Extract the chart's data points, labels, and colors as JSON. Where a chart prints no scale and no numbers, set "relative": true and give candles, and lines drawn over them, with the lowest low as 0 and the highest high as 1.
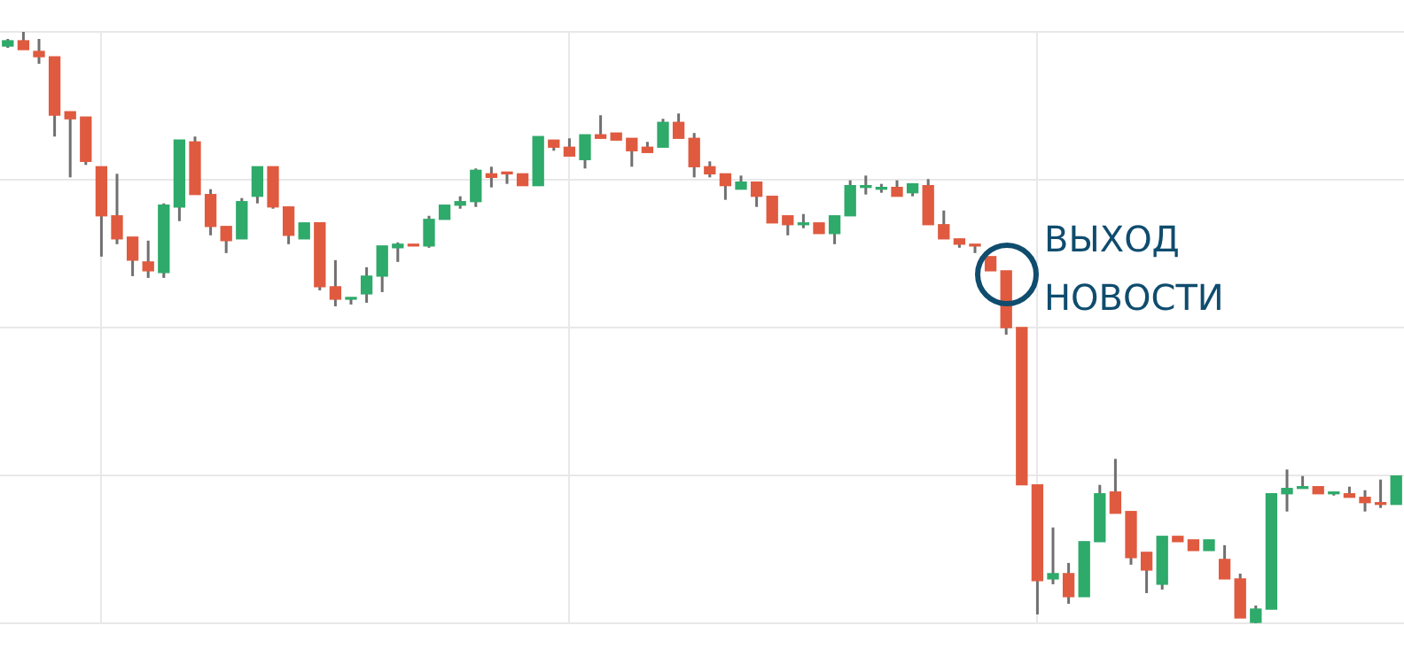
{
  "chart_data": {
    "type": "candlestick",
    "relative": true,
    "grid": true,
    "categories": [
      null,
      null,
      null,
      null,
      null,
      null,
      null,
      null,
      null,
      null,
      null,
      null,
      null,
      null,
      null,
      null,
      null,
      null,
      null,
      null,
      null,
      null,
      null,
      null,
      null,
      null,
      null,
      null,
      null,
      null,
      null,
      null,
      null,
      null,
      null,
      null,
      null,
      null,
      null,
      null,
      null,
      null,
      null,
      null,
      null,
      null,
      null,
      null,
      null,
      null,
      null,
      null,
      null,
      null,
      null,
      null,
      null,
      null,
      null,
      null,
      null,
      null,
      null,
      null,
      null,
      null,
      null,
      null,
      null,
      null,
      null,
      null,
      null,
      null,
      null,
      null,
      null,
      null,
      null,
      null,
      null,
      null,
      null,
      null,
      null,
      null,
      null,
      null,
      null,
      null
    ],
    "series": [
      {
        "colors": [
          "#2eaa6a",
          "#e05a3f",
          "#e05a3f",
          "#e05a3f",
          "#e05a3f",
          "#e05a3f",
          "#e05a3f",
          "#e05a3f",
          "#e05a3f",
          "#e05a3f",
          "#2eaa6a",
          "#2eaa6a",
          "#e05a3f",
          "#e05a3f",
          "#e05a3f",
          "#2eaa6a",
          "#2eaa6a",
          "#e05a3f",
          "#e05a3f",
          "#2eaa6a",
          "#e05a3f",
          "#e05a3f",
          "#2eaa6a",
          "#2eaa6a",
          "#2eaa6a",
          "#2eaa6a",
          "#e05a3f",
          "#2eaa6a",
          "#2eaa6a",
          "#2eaa6a",
          "#2eaa6a",
          "#e05a3f",
          "#e05a3f",
          "#e05a3f",
          "#2eaa6a",
          "#e05a3f",
          "#e05a3f",
          "#2eaa6a",
          "#e05a3f",
          "#e05a3f",
          "#e05a3f",
          "#e05a3f",
          "#2eaa6a",
          "#e05a3f",
          "#e05a3f",
          "#e05a3f",
          "#e05a3f",
          "#2eaa6a",
          "#e05a3f",
          "#e05a3f",
          "#e05a3f",
          "#2eaa6a",
          "#e05a3f",
          "#2eaa6a",
          "#2eaa6a",
          "#2eaa6a",
          "#2eaa6a",
          "#e05a3f",
          "#2eaa6a",
          "#e05a3f",
          "#e05a3f",
          "#e05a3f",
          "#e05a3f",
          "#e05a3f",
          "#e05a3f",
          "#e05a3f",
          "#e05a3f",
          "#2eaa6a",
          "#e05a3f",
          "#2eaa6a",
          "#2eaa6a",
          "#e05a3f",
          "#e05a3f",
          "#e05a3f",
          "#2eaa6a",
          "#e05a3f",
          "#e05a3f",
          "#2eaa6a",
          "#e05a3f",
          "#e05a3f",
          "#2eaa6a",
          "#2eaa6a",
          "#2eaa6a",
          "#2eaa6a",
          "#e05a3f",
          "#2eaa6a",
          "#e05a3f",
          "#e05a3f",
          "#e05a3f",
          "#2eaa6a"
        ],
        "ohlc": [
          [
            0.976,
            0.988,
            0.973,
            0.985
          ],
          [
            0.985,
            1.0,
            0.97,
            0.97
          ],
          [
            0.967,
            0.988,
            0.946,
            0.958
          ],
          [
            0.958,
            0.958,
            0.823,
            0.859
          ],
          [
            0.865,
            0.865,
            0.754,
            0.853
          ],
          [
            0.856,
            0.856,
            0.775,
            0.781
          ],
          [
            0.772,
            0.772,
            0.62,
            0.689
          ],
          [
            0.689,
            0.76,
            0.641,
            0.65
          ],
          [
            0.653,
            0.653,
            0.587,
            0.614
          ],
          [
            0.611,
            0.647,
            0.584,
            0.596
          ],
          [
            0.593,
            0.71,
            0.584,
            0.707
          ],
          [
            0.704,
            0.817,
            0.68,
            0.817
          ],
          [
            0.814,
            0.823,
            0.725,
            0.725
          ],
          [
            0.725,
            0.734,
            0.656,
            0.671
          ],
          [
            0.671,
            0.671,
            0.626,
            0.647
          ],
          [
            0.65,
            0.719,
            0.65,
            0.713
          ],
          [
            0.722,
            0.772,
            0.71,
            0.772
          ],
          [
            0.772,
            0.772,
            0.701,
            0.704
          ],
          [
            0.704,
            0.704,
            0.641,
            0.656
          ],
          [
            0.65,
            0.677,
            0.65,
            0.677
          ],
          [
            0.677,
            0.677,
            0.563,
            0.569
          ],
          [
            0.569,
            0.614,
            0.536,
            0.548
          ],
          [
            0.548,
            0.551,
            0.539,
            0.551
          ],
          [
            0.557,
            0.602,
            0.542,
            0.587
          ],
          [
            0.587,
            0.638,
            0.56,
            0.638
          ],
          [
            0.635,
            0.644,
            0.611,
            0.641
          ],
          [
            0.641,
            0.641,
            0.638,
            0.638
          ],
          [
            0.638,
            0.689,
            0.635,
            0.683
          ],
          [
            0.683,
            0.707,
            0.683,
            0.707
          ],
          [
            0.707,
            0.722,
            0.701,
            0.713
          ],
          [
            0.713,
            0.769,
            0.704,
            0.766
          ],
          [
            0.76,
            0.772,
            0.737,
            0.754
          ],
          [
            0.763,
            0.763,
            0.743,
            0.76
          ],
          [
            0.76,
            0.76,
            0.74,
            0.74
          ],
          [
            0.74,
            0.823,
            0.74,
            0.823
          ],
          [
            0.817,
            0.817,
            0.799,
            0.805
          ],
          [
            0.805,
            0.82,
            0.79,
            0.79
          ],
          [
            0.784,
            0.826,
            0.769,
            0.826
          ],
          [
            0.826,
            0.859,
            0.82,
            0.82
          ],
          [
            0.829,
            0.829,
            0.817,
            0.817
          ],
          [
            0.82,
            0.82,
            0.772,
            0.799
          ],
          [
            0.805,
            0.814,
            0.796,
            0.796
          ],
          [
            0.805,
            0.853,
            0.805,
            0.847
          ],
          [
            0.847,
            0.862,
            0.82,
            0.82
          ],
          [
            0.82,
            0.829,
            0.754,
            0.772
          ],
          [
            0.772,
            0.781,
            0.754,
            0.76
          ],
          [
            0.76,
            0.76,
            0.716,
            0.74
          ],
          [
            0.734,
            0.757,
            0.734,
            0.746
          ],
          [
            0.746,
            0.746,
            0.704,
            0.722
          ],
          [
            0.722,
            0.722,
            0.677,
            0.677
          ],
          [
            0.689,
            0.689,
            0.656,
            0.674
          ],
          [
            0.674,
            0.692,
            0.668,
            0.677
          ],
          [
            0.677,
            0.677,
            0.659,
            0.659
          ],
          [
            0.659,
            0.689,
            0.641,
            0.689
          ],
          [
            0.689,
            0.749,
            0.689,
            0.74
          ],
          [
            0.737,
            0.757,
            0.725,
            0.74
          ],
          [
            0.734,
            0.743,
            0.728,
            0.737
          ],
          [
            0.737,
            0.749,
            0.722,
            0.722
          ],
          [
            0.728,
            0.743,
            0.722,
            0.743
          ],
          [
            0.74,
            0.751,
            0.674,
            0.674
          ],
          [
            0.674,
            0.698,
            0.65,
            0.65
          ],
          [
            0.65,
            0.65,
            0.635,
            0.641
          ],
          [
            0.641,
            0.641,
            0.626,
            0.638
          ],
          [
            0.62,
            0.62,
            0.596,
            0.596
          ],
          [
            0.596,
            0.596,
            0.488,
            0.5
          ],
          [
            0.5,
            0.5,
            0.234,
            0.234
          ],
          [
            0.234,
            0.234,
            0.015,
            0.072
          ],
          [
            0.075,
            0.162,
            0.066,
            0.084
          ],
          [
            0.084,
            0.102,
            0.033,
            0.045
          ],
          [
            0.045,
            0.138,
            0.045,
            0.138
          ],
          [
            0.138,
            0.234,
            0.138,
            0.219
          ],
          [
            0.222,
            0.278,
            0.186,
            0.186
          ],
          [
            0.189,
            0.189,
            0.099,
            0.111
          ],
          [
            0.12,
            0.12,
            0.051,
            0.09
          ],
          [
            0.066,
            0.147,
            0.057,
            0.147
          ],
          [
            0.147,
            0.147,
            0.138,
            0.138
          ],
          [
            0.141,
            0.141,
            0.123,
            0.123
          ],
          [
            0.123,
            0.141,
            0.123,
            0.141
          ],
          [
            0.108,
            0.132,
            0.075,
            0.075
          ],
          [
            0.075,
            0.084,
            0.009,
            0.009
          ],
          [
            0,
            0.03,
            0,
            0.024
          ],
          [
            0.024,
            0.219,
            0.024,
            0.219
          ],
          [
            0.219,
            0.26,
            0.189,
            0.228
          ],
          [
            0.228,
            0.249,
            0.228,
            0.231
          ],
          [
            0.231,
            0.231,
            0.219,
            0.219
          ],
          [
            0.219,
            0.222,
            0.216,
            0.222
          ],
          [
            0.219,
            0.231,
            0.213,
            0.213
          ],
          [
            0.213,
            0.225,
            0.189,
            0.204
          ],
          [
            0.204,
            0.243,
            0.195,
            0.201
          ],
          [
            0.201,
            0.249,
            0.201,
            0.249
          ]
        ]
      }
    ],
    "annotations": [
      "ВЫХОД НОВОСТИ"
    ]
  }
}
